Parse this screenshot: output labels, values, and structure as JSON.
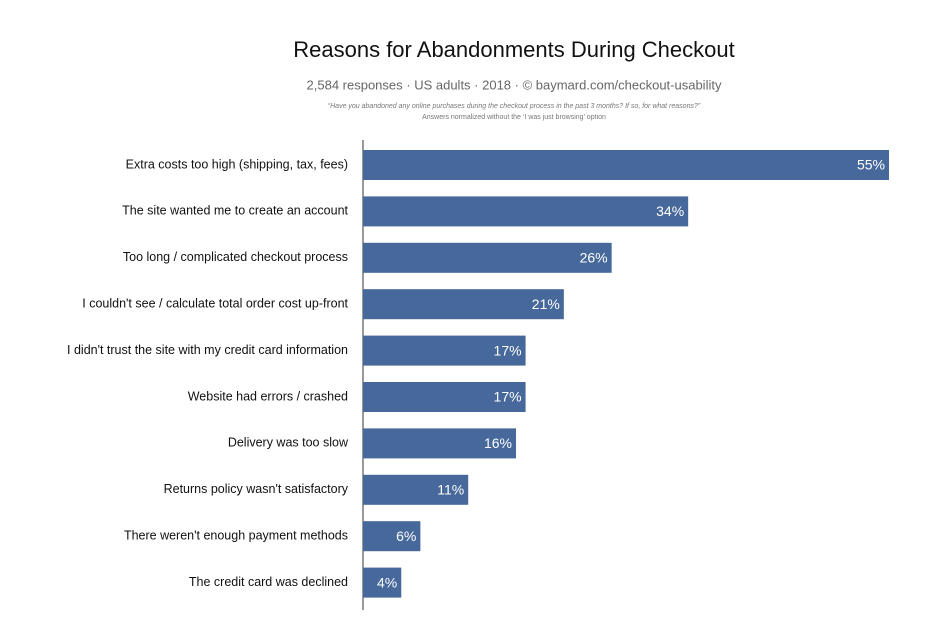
{
  "chart_data": {
    "type": "bar",
    "orientation": "horizontal",
    "title": "Reasons for Abandonments During Checkout",
    "subtitle": "2,584 responses · US adults · 2018 · © baymard.com/checkout-usability",
    "notes": [
      "“Have you abandoned any online purchases during the checkout process in the past 3 months? If so, for what reasons?”",
      "Answers normalized without the ‘I was just browsing’ option"
    ],
    "categories": [
      "Extra costs too high (shipping, tax, fees)",
      "The site wanted me to create an account",
      "Too long / complicated checkout process",
      "I couldn't see / calculate total order cost up-front",
      "I didn't trust the site with my credit card information",
      "Website had errors / crashed",
      "Delivery was too slow",
      "Returns policy wasn't satisfactory",
      "There weren't enough payment methods",
      "The credit card was declined"
    ],
    "values": [
      55,
      34,
      26,
      21,
      17,
      17,
      16,
      11,
      6,
      4
    ],
    "value_labels": [
      "55%",
      "34%",
      "26%",
      "21%",
      "17%",
      "17%",
      "16%",
      "11%",
      "6%",
      "4%"
    ],
    "color": "#46689a"
  }
}
